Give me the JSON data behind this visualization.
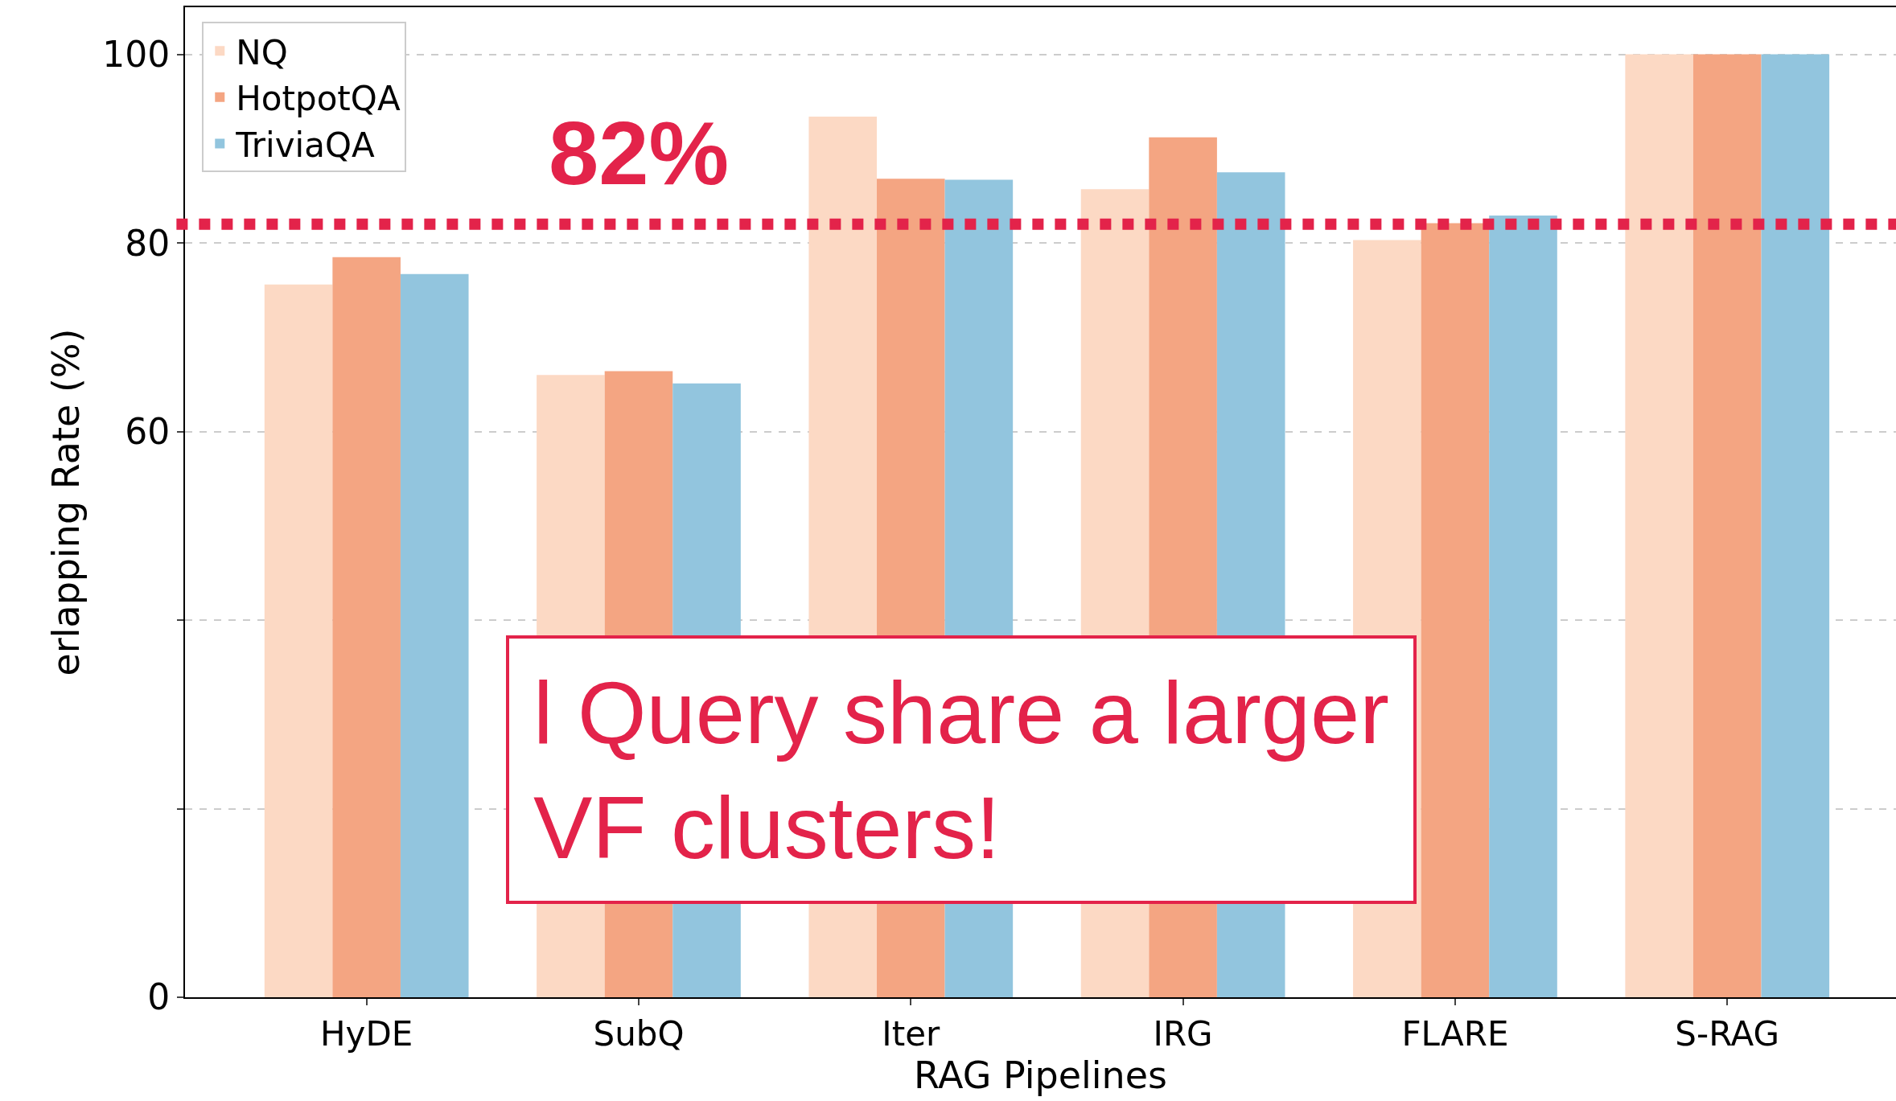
{
  "chart_data": {
    "type": "bar",
    "xlabel": "RAG Pipelines",
    "ylabel": "erlapping Rate (%)",
    "categories": [
      "HyDE",
      "SubQ",
      "Iter",
      "IRG",
      "FLARE",
      "S-RAG"
    ],
    "series": [
      {
        "name": "NQ",
        "color": "#fcd9c4",
        "values": [
          75.6,
          66.0,
          93.4,
          85.7,
          80.3,
          100
        ]
      },
      {
        "name": "HotpotQA",
        "color": "#f4a582",
        "values": [
          78.5,
          66.4,
          86.8,
          91.2,
          82.1,
          100
        ]
      },
      {
        "name": "TriviaQA",
        "color": "#92c5de",
        "values": [
          76.7,
          65.1,
          86.7,
          87.5,
          82.9,
          100
        ]
      }
    ],
    "ylim": [
      0,
      105
    ],
    "yticks": [
      0,
      {
        "value": 20,
        "label": null
      },
      {
        "value": 40,
        "label": null
      },
      60,
      80,
      100
    ],
    "grid": "y",
    "legend": "top left",
    "ref_lines": [
      {
        "axis": "y",
        "value": 82,
        "label": "82%",
        "color": "#e3234a",
        "line_style": "dotted"
      }
    ],
    "annotations": [
      "l Query share a larger\nVF clusters!"
    ]
  }
}
